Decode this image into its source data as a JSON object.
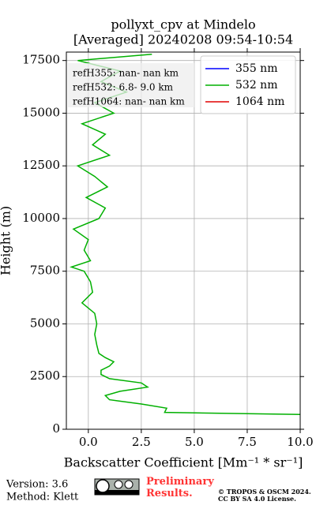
{
  "chart_data": {
    "type": "line",
    "title": "pollyxt_cpv at Mindelo",
    "subtitle": "[Averaged] 20240208 09:54-10:54",
    "x_label": "Backscatter Coefficient [Mm⁻¹ * sr⁻¹]",
    "y_label": "Height (m)",
    "y": [
      700,
      800,
      1000,
      1200,
      1400,
      1600,
      1800,
      2000,
      2200,
      2400,
      2600,
      2800,
      3000,
      3200,
      3400,
      3600,
      4000,
      4500,
      5000,
      5500,
      6000,
      6500,
      7000,
      7500,
      7700,
      8000,
      8500,
      9000,
      9500,
      10000,
      10500,
      11000,
      11500,
      12000,
      12500,
      13000,
      13500,
      14000,
      14500,
      15000,
      15500,
      16000,
      16500,
      17000,
      17500,
      17800
    ],
    "series": [
      {
        "name": "355 nm",
        "color": "#0000ff",
        "values": [
          null,
          null,
          null,
          null,
          null,
          null,
          null,
          null,
          null,
          null,
          null,
          null,
          null,
          null,
          null,
          null,
          null,
          null,
          null,
          null,
          null,
          null,
          null,
          null,
          null,
          null,
          null,
          null,
          null,
          null,
          null,
          null,
          null,
          null,
          null,
          null,
          null,
          null,
          null,
          null,
          null,
          null,
          null,
          null,
          null,
          null
        ]
      },
      {
        "name": "532 nm",
        "color": "#00b000",
        "values": [
          10,
          3.6,
          3.7,
          2.5,
          1.0,
          0.8,
          1.5,
          2.8,
          2.5,
          1.0,
          0.6,
          0.6,
          1.0,
          1.2,
          0.8,
          0.5,
          0.4,
          0.3,
          0.4,
          0.3,
          -0.3,
          0.2,
          0.1,
          -0.2,
          -0.8,
          0.1,
          -0.2,
          0.0,
          -0.7,
          0.5,
          0.8,
          -0.1,
          0.9,
          0.3,
          -0.5,
          1.0,
          0.2,
          0.8,
          -0.3,
          1.2,
          0.3,
          1.8,
          0.6,
          1.5,
          -0.5,
          3.0
        ]
      },
      {
        "name": "1064 nm",
        "color": "#e00000",
        "values": [
          null,
          null,
          null,
          null,
          null,
          null,
          null,
          null,
          null,
          null,
          null,
          null,
          null,
          null,
          null,
          null,
          null,
          null,
          null,
          null,
          null,
          null,
          null,
          null,
          null,
          null,
          null,
          null,
          null,
          null,
          null,
          null,
          null,
          null,
          null,
          null,
          null,
          null,
          null,
          null,
          null,
          null,
          null,
          null,
          null,
          null
        ]
      }
    ],
    "xlim": [
      -1,
      10
    ],
    "ylim": [
      0,
      17900
    ],
    "xticks": [
      {
        "value": 0,
        "label": "0.0"
      },
      {
        "value": 2.5,
        "label": "2.5"
      },
      {
        "value": 5,
        "label": "5.0"
      },
      {
        "value": 7.5,
        "label": "7.5"
      },
      {
        "value": 10,
        "label": "10.0"
      }
    ],
    "yticks": [
      0,
      2500,
      5000,
      7500,
      10000,
      12500,
      15000,
      17500
    ],
    "grid": true,
    "legend": "upper right",
    "annotations": [
      "refH355:  nan- nan km",
      "refH532:  6.8- 9.0 km",
      "refH1064:  nan- nan km"
    ]
  },
  "footer": {
    "version": "Version: 3.6",
    "method": "Method: Klett",
    "status": "Preliminary Results.",
    "copyright": "© TROPOS & OSCM 2024.",
    "license": "CC BY SA 4.0 License."
  }
}
